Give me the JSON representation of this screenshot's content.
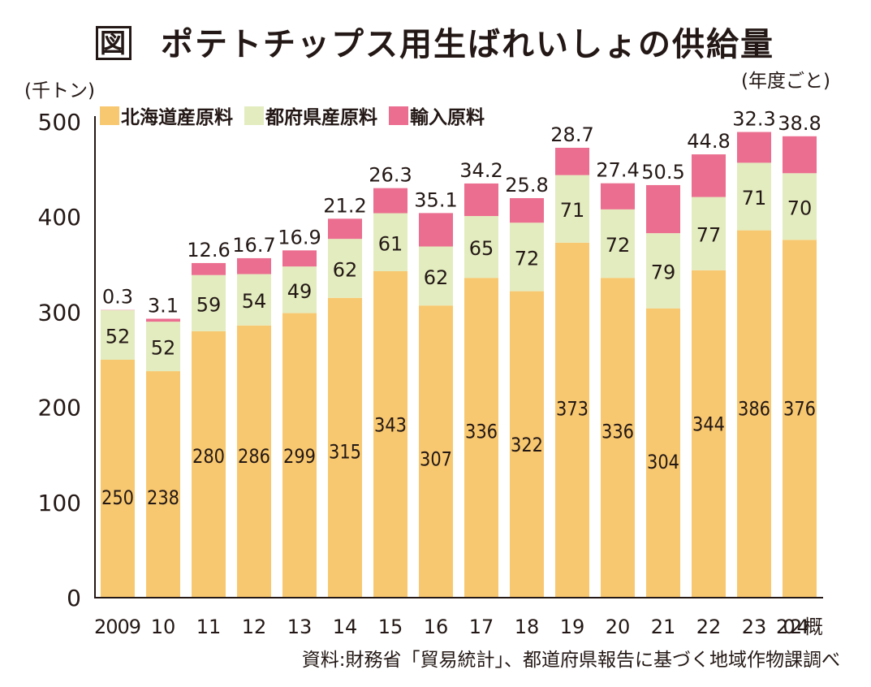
{
  "chart_data": {
    "type": "bar",
    "stacked": true,
    "title": "ポテトチップス用生ばれいしょの供給量",
    "figure_label": "図",
    "subtitle": "(年度ごと)",
    "ylabel": "(千トン)",
    "xlabel": "",
    "ylim": [
      0,
      500
    ],
    "yticks": [
      0,
      100,
      200,
      300,
      400,
      500
    ],
    "grid": false,
    "legend_position": "top-left",
    "categories": [
      "2009",
      "10",
      "11",
      "12",
      "13",
      "14",
      "15",
      "16",
      "17",
      "18",
      "19",
      "20",
      "21",
      "22",
      "23",
      "2024概"
    ],
    "series": [
      {
        "name": "北海道産原料",
        "color": "#f8c870",
        "values": [
          250,
          238,
          280,
          286,
          299,
          315,
          343,
          307,
          336,
          322,
          373,
          336,
          304,
          344,
          386,
          376
        ],
        "labels": [
          "250",
          "238",
          "280",
          "286",
          "299",
          "315",
          "343",
          "307",
          "336",
          "322",
          "373",
          "336",
          "304",
          "344",
          "386",
          "376"
        ]
      },
      {
        "name": "都府県産原料",
        "color": "#e3ecbf",
        "values": [
          52,
          52,
          59,
          54,
          49,
          62,
          61,
          62,
          65,
          72,
          71,
          72,
          79,
          77,
          71,
          70
        ],
        "labels": [
          "52",
          "52",
          "59",
          "54",
          "49",
          "62",
          "61",
          "62",
          "65",
          "72",
          "71",
          "72",
          "79",
          "77",
          "71",
          "70"
        ]
      },
      {
        "name": "輸入原料",
        "color": "#eb6d8f",
        "values": [
          0.3,
          3.1,
          12.6,
          16.7,
          16.9,
          21.2,
          26.3,
          35.1,
          34.2,
          25.8,
          28.7,
          27.4,
          50.5,
          44.8,
          32.3,
          38.8
        ],
        "labels": [
          "0.3",
          "3.1",
          "12.6",
          "16.7",
          "16.9",
          "21.2",
          "26.3",
          "35.1",
          "34.2",
          "25.8",
          "28.7",
          "27.4",
          "50.5",
          "44.8",
          "32.3",
          "38.8"
        ]
      }
    ],
    "source": "資料:財務省「貿易統計」、都道府県報告に基づく地域作物課調べ"
  }
}
